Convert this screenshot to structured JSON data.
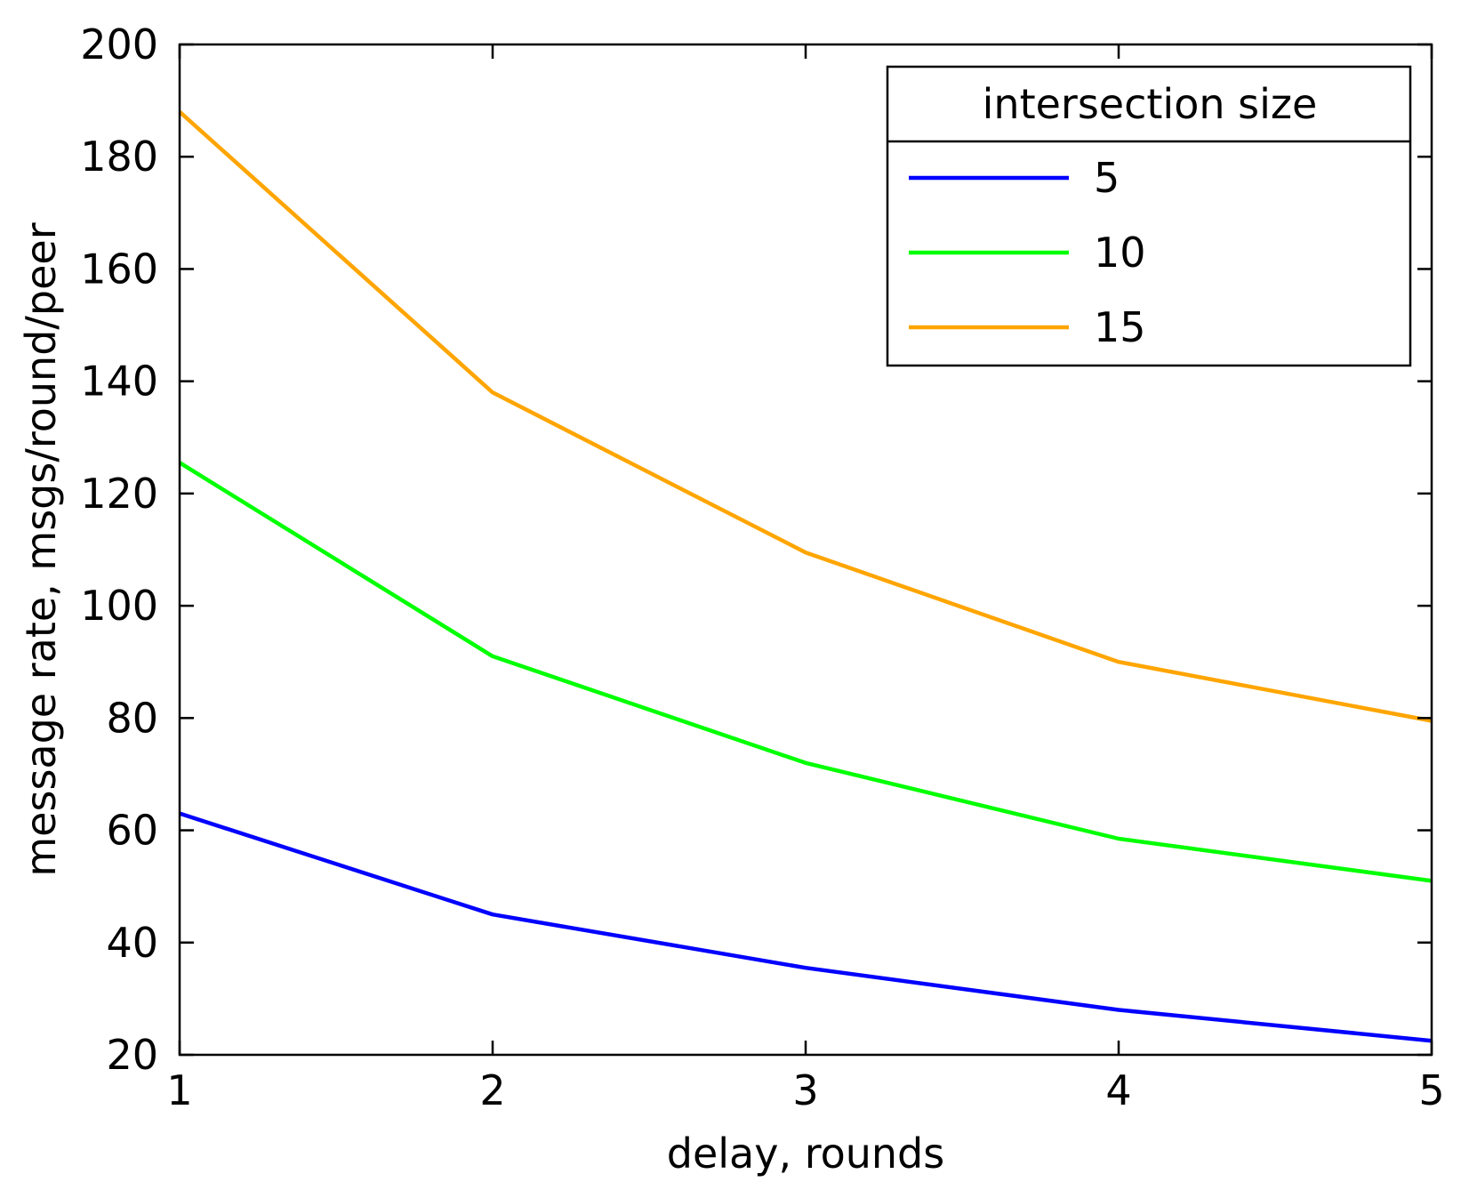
{
  "chart_data": {
    "type": "line",
    "title": "",
    "xlabel": "delay, rounds",
    "ylabel": "message rate, msgs/round/peer",
    "x": [
      1,
      2,
      3,
      4,
      5
    ],
    "xlim": [
      1,
      5
    ],
    "ylim": [
      20,
      200
    ],
    "xticks": [
      "1",
      "2",
      "3",
      "4",
      "5"
    ],
    "yticks": [
      "20",
      "40",
      "60",
      "80",
      "100",
      "120",
      "140",
      "160",
      "180",
      "200"
    ],
    "grid": false,
    "legend": {
      "title": "intersection size",
      "placement": "top-right"
    },
    "series": [
      {
        "name": "5",
        "color": "#0000ff",
        "values": [
          63,
          45,
          35.5,
          28,
          22.5
        ]
      },
      {
        "name": "10",
        "color": "#00ff00",
        "values": [
          125.5,
          91,
          72,
          58.5,
          51
        ]
      },
      {
        "name": "15",
        "color": "#ffa500",
        "values": [
          188,
          138,
          109.5,
          90,
          79.5
        ]
      }
    ]
  }
}
